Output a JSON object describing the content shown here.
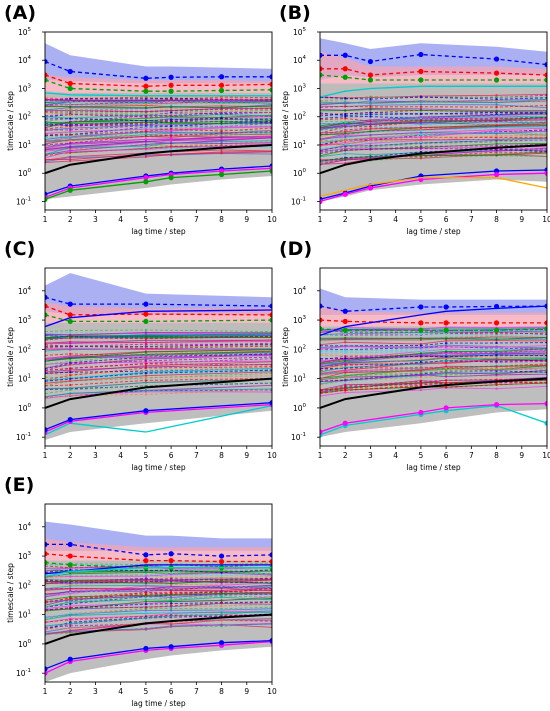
{
  "chart_data": [
    {
      "type": "line",
      "panel_label": "(A)",
      "xlabel": "lag time / step",
      "ylabel": "timescale / step",
      "x": [
        1,
        2,
        3,
        4,
        5,
        6,
        7,
        8,
        9,
        10
      ],
      "xlim": [
        1,
        10
      ],
      "ylim": [
        0.05,
        100000
      ],
      "yscale": "log",
      "y_ticks": [
        "10^-1",
        "10^0",
        "10^1",
        "10^2",
        "10^3",
        "10^4",
        "10^5"
      ],
      "lag_times": [
        1,
        2,
        5,
        6,
        8,
        10
      ],
      "bands": [
        {
          "color": "#8e95ee",
          "upper": [
            40000,
            15000,
            6000,
            6000,
            5500,
            5000
          ],
          "lower": [
            2000,
            1800,
            1500,
            1500,
            1500,
            1500
          ]
        },
        {
          "color": "#f3a4b3",
          "upper": [
            3000,
            2500,
            2000,
            2000,
            2000,
            1800
          ],
          "lower": [
            150,
            200,
            250,
            250,
            250,
            250
          ]
        },
        {
          "color": "#bbbbbb",
          "upper": [
            800,
            700,
            700,
            700,
            700,
            700
          ],
          "lower": [
            0.12,
            0.15,
            0.3,
            0.4,
            0.6,
            0.8
          ]
        }
      ],
      "highlight_series": [
        {
          "color": "#0000ff",
          "dash": "4,3",
          "marker": true,
          "values": [
            9000,
            4000,
            2300,
            2500,
            2600,
            2600
          ]
        },
        {
          "color": "#ff0000",
          "dash": "4,3",
          "marker": true,
          "values": [
            3000,
            1500,
            1200,
            1300,
            1300,
            1400
          ]
        },
        {
          "color": "#00a000",
          "dash": "4,3",
          "marker": true,
          "values": [
            2000,
            1000,
            800,
            800,
            850,
            900
          ]
        },
        {
          "color": "#00cccc",
          "dash": "",
          "marker": false,
          "values": [
            700,
            600,
            550,
            550,
            550,
            550
          ]
        },
        {
          "color": "#cc00cc",
          "dash": "",
          "marker": false,
          "values": [
            400,
            380,
            380,
            380,
            390,
            390
          ]
        },
        {
          "color": "#0000ff",
          "dash": "",
          "marker": true,
          "values": [
            0.18,
            0.35,
            0.8,
            1.0,
            1.4,
            1.8
          ]
        },
        {
          "color": "#ff00ff",
          "dash": "",
          "marker": true,
          "values": [
            0.14,
            0.3,
            0.7,
            0.9,
            1.2,
            1.5
          ]
        },
        {
          "color": "#00a000",
          "dash": "",
          "marker": true,
          "values": [
            0.12,
            0.25,
            0.5,
            0.7,
            0.9,
            1.2
          ]
        },
        {
          "color": "#000000",
          "dash": "",
          "marker": false,
          "width": 2,
          "values": [
            1,
            2,
            5,
            6,
            8,
            10
          ]
        }
      ]
    },
    {
      "type": "line",
      "panel_label": "(B)",
      "xlabel": "lag time / step",
      "ylabel": "timescale / step",
      "x": [
        1,
        2,
        3,
        4,
        5,
        6,
        7,
        8,
        9,
        10
      ],
      "xlim": [
        1,
        10
      ],
      "ylim": [
        0.05,
        100000
      ],
      "yscale": "log",
      "y_ticks": [
        "10^-1",
        "10^0",
        "10^1",
        "10^2",
        "10^3",
        "10^4",
        "10^5"
      ],
      "lag_times": [
        1,
        2,
        3,
        5,
        8,
        10
      ],
      "bands": [
        {
          "color": "#8e95ee",
          "upper": [
            60000,
            40000,
            25000,
            40000,
            30000,
            20000
          ],
          "lower": [
            2000,
            3000,
            2500,
            3000,
            3000,
            3000
          ]
        },
        {
          "color": "#f3a4b3",
          "upper": [
            20000,
            12000,
            6000,
            6000,
            6000,
            5000
          ],
          "lower": [
            300,
            400,
            500,
            500,
            500,
            500
          ]
        },
        {
          "color": "#bbbbbb",
          "upper": [
            1500,
            1500,
            1500,
            1500,
            1500,
            1500
          ],
          "lower": [
            0.1,
            0.15,
            0.25,
            0.4,
            0.6,
            0.5
          ]
        }
      ],
      "highlight_series": [
        {
          "color": "#0000ff",
          "dash": "4,3",
          "marker": true,
          "values": [
            15000,
            15000,
            9000,
            16000,
            11000,
            7000
          ]
        },
        {
          "color": "#ff0000",
          "dash": "4,3",
          "marker": true,
          "values": [
            5000,
            5000,
            3000,
            4000,
            3500,
            3000
          ]
        },
        {
          "color": "#00a000",
          "dash": "4,3",
          "marker": true,
          "values": [
            3000,
            2500,
            2000,
            2000,
            2000,
            2000
          ]
        },
        {
          "color": "#00cccc",
          "dash": "",
          "marker": false,
          "values": [
            500,
            800,
            1000,
            1200,
            1200,
            1200
          ]
        },
        {
          "color": "#0000ff",
          "dash": "",
          "marker": true,
          "values": [
            0.12,
            0.2,
            0.35,
            0.8,
            1.2,
            1.3
          ]
        },
        {
          "color": "#ff00ff",
          "dash": "",
          "marker": true,
          "values": [
            0.1,
            0.18,
            0.3,
            0.6,
            0.9,
            1.0
          ]
        },
        {
          "color": "#ffa500",
          "dash": "",
          "marker": false,
          "values": [
            0.15,
            0.25,
            0.4,
            0.7,
            0.7,
            0.3
          ]
        },
        {
          "color": "#000000",
          "dash": "",
          "marker": false,
          "width": 2,
          "values": [
            1,
            2,
            3,
            5,
            8,
            10
          ]
        }
      ]
    },
    {
      "type": "line",
      "panel_label": "(C)",
      "xlabel": "lag time / step",
      "ylabel": "timescale / step",
      "x": [
        1,
        2,
        3,
        4,
        5,
        6,
        7,
        8,
        9,
        10
      ],
      "xlim": [
        1,
        10
      ],
      "ylim": [
        0.05,
        60000
      ],
      "yscale": "log",
      "y_ticks": [
        "10^-1",
        "10^0",
        "10^1",
        "10^2",
        "10^3",
        "10^4"
      ],
      "lag_times": [
        1,
        2,
        5,
        10
      ],
      "bands": [
        {
          "color": "#8e95ee",
          "upper": [
            15000,
            40000,
            8000,
            6000
          ],
          "lower": [
            2000,
            1500,
            1500,
            1500
          ]
        },
        {
          "color": "#f3a4b3",
          "upper": [
            4000,
            3000,
            2500,
            2500
          ],
          "lower": [
            200,
            300,
            300,
            300
          ]
        },
        {
          "color": "#bbbbbb",
          "upper": [
            800,
            800,
            800,
            800
          ],
          "lower": [
            0.08,
            0.15,
            0.3,
            0.8
          ]
        }
      ],
      "highlight_series": [
        {
          "color": "#0000ff",
          "dash": "4,3",
          "marker": true,
          "values": [
            6000,
            3500,
            3500,
            3000
          ]
        },
        {
          "color": "#ff0000",
          "dash": "4,3",
          "marker": true,
          "values": [
            3000,
            1500,
            1600,
            1500
          ]
        },
        {
          "color": "#00a000",
          "dash": "4,3",
          "marker": true,
          "values": [
            1500,
            900,
            900,
            1000
          ]
        },
        {
          "color": "#0000ff",
          "dash": "",
          "marker": false,
          "values": [
            600,
            1200,
            2000,
            2200
          ]
        },
        {
          "color": "#00cccc",
          "dash": "",
          "marker": false,
          "values": [
            0.12,
            0.3,
            0.15,
            1.2
          ]
        },
        {
          "color": "#ff00ff",
          "dash": "",
          "marker": true,
          "values": [
            0.15,
            0.35,
            0.7,
            1.3
          ]
        },
        {
          "color": "#0000ff",
          "dash": "",
          "marker": true,
          "values": [
            0.18,
            0.4,
            0.8,
            1.5
          ]
        },
        {
          "color": "#000000",
          "dash": "",
          "marker": false,
          "width": 2,
          "values": [
            1,
            2,
            5,
            10
          ]
        }
      ]
    },
    {
      "type": "line",
      "panel_label": "(D)",
      "xlabel": "lag time / step",
      "ylabel": "timescale / step",
      "x": [
        1,
        2,
        3,
        4,
        5,
        6,
        7,
        8,
        9,
        10
      ],
      "xlim": [
        1,
        10
      ],
      "ylim": [
        0.05,
        60000
      ],
      "yscale": "log",
      "y_ticks": [
        "10^-1",
        "10^0",
        "10^1",
        "10^2",
        "10^3",
        "10^4"
      ],
      "lag_times": [
        1,
        2,
        5,
        6,
        8,
        10
      ],
      "bands": [
        {
          "color": "#8e95ee",
          "upper": [
            12000,
            6000,
            5000,
            5000,
            5000,
            5000
          ],
          "lower": [
            1500,
            1500,
            1500,
            1500,
            1500,
            1500
          ]
        },
        {
          "color": "#f3a4b3",
          "upper": [
            3000,
            2000,
            1800,
            1800,
            1800,
            1800
          ],
          "lower": [
            150,
            200,
            250,
            250,
            250,
            250
          ]
        },
        {
          "color": "#bbbbbb",
          "upper": [
            600,
            600,
            600,
            600,
            600,
            600
          ],
          "lower": [
            0.1,
            0.15,
            0.3,
            0.4,
            0.7,
            0.9
          ]
        }
      ],
      "highlight_series": [
        {
          "color": "#0000ff",
          "dash": "4,3",
          "marker": true,
          "values": [
            3000,
            2000,
            2800,
            2800,
            2900,
            3000
          ]
        },
        {
          "color": "#ff0000",
          "dash": "4,3",
          "marker": true,
          "values": [
            1000,
            900,
            800,
            800,
            800,
            800
          ]
        },
        {
          "color": "#00a000",
          "dash": "4,3",
          "marker": true,
          "values": [
            500,
            450,
            450,
            450,
            450,
            500
          ]
        },
        {
          "color": "#0000ff",
          "dash": "",
          "marker": false,
          "values": [
            300,
            600,
            1500,
            2000,
            2500,
            3000
          ]
        },
        {
          "color": "#00cccc",
          "dash": "",
          "marker": true,
          "values": [
            0.12,
            0.25,
            0.6,
            0.8,
            1.2,
            0.3
          ]
        },
        {
          "color": "#ff00ff",
          "dash": "",
          "marker": true,
          "values": [
            0.15,
            0.3,
            0.7,
            1.0,
            1.3,
            1.4
          ]
        },
        {
          "color": "#000000",
          "dash": "",
          "marker": false,
          "width": 2,
          "values": [
            1,
            2,
            5,
            6,
            8,
            10
          ]
        }
      ]
    },
    {
      "type": "line",
      "panel_label": "(E)",
      "xlabel": "lag time / step",
      "ylabel": "timescale / step",
      "x": [
        1,
        2,
        3,
        4,
        5,
        6,
        7,
        8,
        9,
        10
      ],
      "xlim": [
        1,
        10
      ],
      "ylim": [
        0.05,
        60000
      ],
      "yscale": "log",
      "y_ticks": [
        "10^-1",
        "10^0",
        "10^1",
        "10^2",
        "10^3",
        "10^4"
      ],
      "lag_times": [
        1,
        2,
        5,
        6,
        8,
        10
      ],
      "bands": [
        {
          "color": "#8e95ee",
          "upper": [
            15000,
            12000,
            5000,
            5000,
            4000,
            4000
          ],
          "lower": [
            1500,
            1500,
            1500,
            1500,
            1500,
            1500
          ]
        },
        {
          "color": "#f3a4b3",
          "upper": [
            4000,
            3000,
            2000,
            2000,
            2000,
            2000
          ],
          "lower": [
            150,
            200,
            250,
            250,
            250,
            250
          ]
        },
        {
          "color": "#bbbbbb",
          "upper": [
            700,
            700,
            700,
            700,
            700,
            700
          ],
          "lower": [
            0.05,
            0.1,
            0.3,
            0.4,
            0.6,
            0.8
          ]
        }
      ],
      "highlight_series": [
        {
          "color": "#0000ff",
          "dash": "4,3",
          "marker": true,
          "values": [
            2500,
            2500,
            1100,
            1200,
            1000,
            1100
          ]
        },
        {
          "color": "#ff0000",
          "dash": "4,3",
          "marker": true,
          "values": [
            1200,
            1000,
            700,
            700,
            650,
            650
          ]
        },
        {
          "color": "#00a000",
          "dash": "4,3",
          "marker": true,
          "values": [
            600,
            500,
            400,
            400,
            400,
            400
          ]
        },
        {
          "color": "#0000ff",
          "dash": "",
          "marker": false,
          "values": [
            250,
            300,
            500,
            500,
            500,
            500
          ]
        },
        {
          "color": "#00cccc",
          "dash": "",
          "marker": false,
          "values": [
            200,
            300,
            400,
            400,
            400,
            400
          ]
        },
        {
          "color": "#ff00ff",
          "dash": "",
          "marker": true,
          "values": [
            0.1,
            0.25,
            0.6,
            0.7,
            0.9,
            1.2
          ]
        },
        {
          "color": "#0000ff",
          "dash": "",
          "marker": true,
          "values": [
            0.14,
            0.3,
            0.7,
            0.8,
            1.1,
            1.3
          ]
        },
        {
          "color": "#000000",
          "dash": "",
          "marker": false,
          "width": 2,
          "values": [
            1,
            2,
            5,
            6,
            8,
            10
          ]
        }
      ]
    }
  ]
}
